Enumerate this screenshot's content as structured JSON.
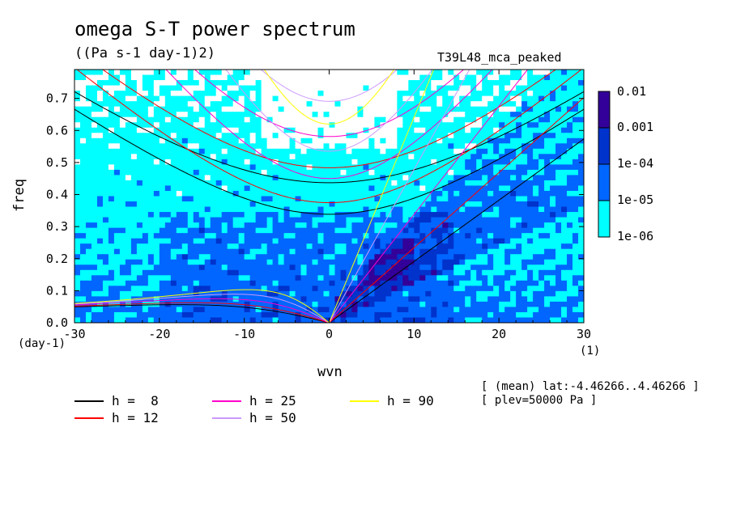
{
  "title": "omega S-T power spectrum",
  "subtitle": "((Pa s-1 day-1)2)",
  "run_name": "T39L48_mca_peaked",
  "meta": [
    "[ (mean) lat:-4.46266..4.46266 ]",
    "[ plev=50000 Pa ]"
  ],
  "chart_data": {
    "type": "heatmap",
    "xlabel": "wvn",
    "xunit": "(1)",
    "ylabel": "freq",
    "yunit": "(day-1)",
    "xlim": [
      -30,
      30
    ],
    "ylim": [
      0,
      0.79
    ],
    "xticks": [
      "-30",
      "-20",
      "-10",
      "0",
      "10",
      "20",
      "30"
    ],
    "yticks": [
      "0.0",
      "0.1",
      "0.2",
      "0.3",
      "0.4",
      "0.5",
      "0.6",
      "0.7"
    ],
    "colorbar": {
      "labels": [
        "0.01",
        "0.001",
        "1e-04",
        "1e-05",
        "1e-06"
      ],
      "bins": [
        {
          "range": "1e-06..1e-05",
          "color": "#00ffff"
        },
        {
          "range": "1e-05..1e-04",
          "color": "#0066ff"
        },
        {
          "range": "1e-04..0.001",
          "color": "#0033cc"
        },
        {
          "range": "0.001..0.01",
          "color": "#330099"
        }
      ],
      "below_min_color": "#ffffff"
    },
    "dispersion_curves": [
      {
        "label": "h =  8",
        "h": 8,
        "color": "#000000"
      },
      {
        "label": "h = 12",
        "h": 12,
        "color": "#ff0000"
      },
      {
        "label": "h = 25",
        "h": 25,
        "color": "#ff00cc"
      },
      {
        "label": "h = 50",
        "h": 50,
        "color": "#cc99ff"
      },
      {
        "label": "h = 90",
        "h": 90,
        "color": "#ffff00"
      }
    ]
  }
}
